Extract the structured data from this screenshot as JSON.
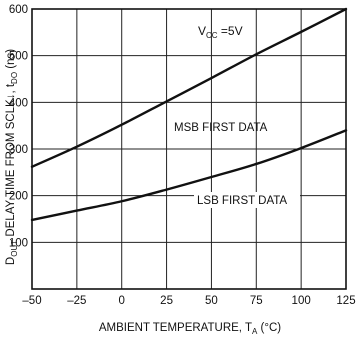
{
  "chart_data": {
    "type": "line",
    "title": "",
    "xlabel": "AMBIENT TEMPERATURE, TA (°C)",
    "xlabel_parts": {
      "main": "AMBIENT TEMPERATURE, T",
      "sub": "A",
      "tail": " (°C)"
    },
    "ylabel": "DOUT DELAY TIME FROM SCLK↓, tDO (ns)",
    "ylabel_parts": {
      "d": "D",
      "d_sub": "OUT",
      "mid": " DELAY TIME FROM SCLK",
      "arrow": "↓",
      "comma": ", t",
      "t_sub": "DO",
      "unit": " (ns)"
    },
    "xlim": [
      -50,
      125
    ],
    "ylim": [
      0,
      600
    ],
    "x_ticks": [
      -50,
      -25,
      0,
      25,
      50,
      75,
      100,
      125
    ],
    "x_tick_labels": [
      "–50",
      "–25",
      "0",
      "25",
      "50",
      "75",
      "100",
      "125"
    ],
    "y_ticks": [
      100,
      200,
      300,
      400,
      500,
      600
    ],
    "y_tick_labels": [
      "100",
      "200",
      "300",
      "400",
      "500",
      "600"
    ],
    "grid": true,
    "condition_label": {
      "v": "V",
      "sub": "CC",
      "rest": " =5V"
    },
    "series": [
      {
        "name": "MSB FIRST DATA",
        "x": [
          -50,
          -25,
          0,
          25,
          50,
          75,
          100,
          125
        ],
        "y": [
          262,
          305,
          352,
          402,
          452,
          503,
          551,
          600
        ]
      },
      {
        "name": "LSB FIRST DATA",
        "x": [
          -50,
          -25,
          0,
          25,
          50,
          75,
          100,
          125
        ],
        "y": [
          148,
          168,
          188,
          213,
          240,
          268,
          302,
          340
        ]
      }
    ]
  }
}
